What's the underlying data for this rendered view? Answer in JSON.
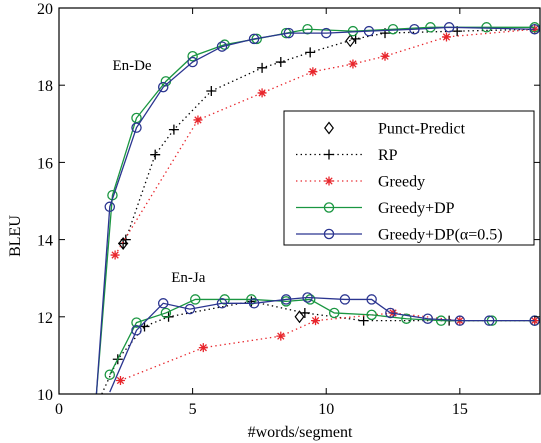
{
  "chart_data": {
    "type": "line",
    "xlabel": "#words/segment",
    "ylabel": "BLEU",
    "xlim": [
      0,
      18
    ],
    "ylim": [
      10,
      20
    ],
    "xticks": [
      0,
      5,
      10,
      15
    ],
    "yticks": [
      10,
      12,
      14,
      16,
      18,
      20
    ],
    "grid": false,
    "legend_position": "center-right",
    "annotations": [
      {
        "text": "En-De",
        "x": 2.0,
        "y": 18.4
      },
      {
        "text": "En-Ja",
        "x": 4.2,
        "y": 12.9
      }
    ],
    "series": [
      {
        "name": "Punct-Predict",
        "color": "#000000",
        "marker": "diamond",
        "line": "none",
        "groups": [
          [
            [
              2.4,
              13.9
            ],
            [
              10.9,
              19.15
            ]
          ],
          [
            [
              9.0,
              12.0
            ]
          ]
        ]
      },
      {
        "name": "RP",
        "color": "#000000",
        "marker": "plus",
        "line": "dotted",
        "groups": [
          [
            [
              2.4,
              13.9
            ],
            [
              2.5,
              14.0
            ],
            [
              3.6,
              16.2
            ],
            [
              4.3,
              16.85
            ],
            [
              5.7,
              17.85
            ],
            [
              7.6,
              18.45
            ],
            [
              8.3,
              18.6
            ],
            [
              9.4,
              18.85
            ],
            [
              11.1,
              19.2
            ],
            [
              12.2,
              19.35
            ],
            [
              14.9,
              19.4
            ],
            [
              17.8,
              19.45
            ]
          ],
          [
            [
              1.6,
              10.0
            ],
            [
              2.2,
              10.9
            ],
            [
              3.2,
              11.75
            ],
            [
              4.1,
              12.0
            ],
            [
              7.2,
              12.4
            ],
            [
              9.2,
              12.1
            ],
            [
              11.4,
              11.9
            ],
            [
              14.6,
              11.9
            ],
            [
              17.8,
              11.9
            ]
          ]
        ]
      },
      {
        "name": "Greedy",
        "color": "#e8262c",
        "marker": "asterisk",
        "line": "dotted",
        "groups": [
          [
            [
              2.1,
              13.6
            ],
            [
              5.2,
              17.1
            ],
            [
              7.6,
              17.8
            ],
            [
              9.5,
              18.35
            ],
            [
              11.0,
              18.55
            ],
            [
              12.2,
              18.75
            ],
            [
              14.5,
              19.25
            ],
            [
              17.8,
              19.45
            ]
          ],
          [
            [
              2.3,
              10.35
            ],
            [
              5.4,
              11.2
            ],
            [
              8.3,
              11.5
            ],
            [
              9.6,
              11.9
            ],
            [
              12.5,
              12.1
            ],
            [
              15.0,
              11.9
            ],
            [
              17.8,
              11.9
            ]
          ]
        ]
      },
      {
        "name": "Greedy+DP",
        "color": "#1a9641",
        "marker": "circle",
        "line": "solid",
        "groups": [
          [
            [
              1.4,
              10.0
            ],
            [
              2.0,
              15.15
            ],
            [
              2.9,
              17.15
            ],
            [
              4.0,
              18.1
            ],
            [
              5.0,
              18.75
            ],
            [
              6.2,
              19.05
            ],
            [
              7.4,
              19.2
            ],
            [
              8.5,
              19.35
            ],
            [
              9.3,
              19.45
            ],
            [
              11.0,
              19.4
            ],
            [
              12.5,
              19.45
            ],
            [
              13.9,
              19.5
            ],
            [
              16.0,
              19.5
            ],
            [
              17.8,
              19.5
            ]
          ],
          [
            [
              1.9,
              10.5
            ],
            [
              2.9,
              11.85
            ],
            [
              4.0,
              12.1
            ],
            [
              5.1,
              12.45
            ],
            [
              6.2,
              12.45
            ],
            [
              7.2,
              12.45
            ],
            [
              8.5,
              12.4
            ],
            [
              9.4,
              12.45
            ],
            [
              10.3,
              12.1
            ],
            [
              11.7,
              12.05
            ],
            [
              13.0,
              11.95
            ],
            [
              14.3,
              11.9
            ],
            [
              16.2,
              11.9
            ],
            [
              17.8,
              11.9
            ]
          ]
        ]
      },
      {
        "name": "Greedy+DP(α=0.5)",
        "color": "#2b3590",
        "marker": "circle",
        "line": "solid",
        "groups": [
          [
            [
              1.4,
              10.0
            ],
            [
              1.9,
              14.85
            ],
            [
              2.9,
              16.9
            ],
            [
              3.9,
              17.95
            ],
            [
              5.0,
              18.6
            ],
            [
              6.1,
              19.0
            ],
            [
              7.3,
              19.2
            ],
            [
              8.6,
              19.35
            ],
            [
              10.0,
              19.35
            ],
            [
              11.6,
              19.4
            ],
            [
              13.3,
              19.45
            ],
            [
              14.6,
              19.5
            ],
            [
              17.8,
              19.45
            ]
          ],
          [
            [
              1.9,
              10.05
            ],
            [
              2.9,
              11.65
            ],
            [
              3.9,
              12.35
            ],
            [
              4.9,
              12.2
            ],
            [
              6.1,
              12.35
            ],
            [
              7.3,
              12.35
            ],
            [
              8.5,
              12.45
            ],
            [
              9.3,
              12.5
            ],
            [
              10.7,
              12.45
            ],
            [
              11.7,
              12.45
            ],
            [
              12.4,
              12.1
            ],
            [
              13.8,
              11.95
            ],
            [
              15.0,
              11.9
            ],
            [
              16.1,
              11.9
            ],
            [
              17.8,
              11.9
            ]
          ]
        ]
      }
    ]
  }
}
